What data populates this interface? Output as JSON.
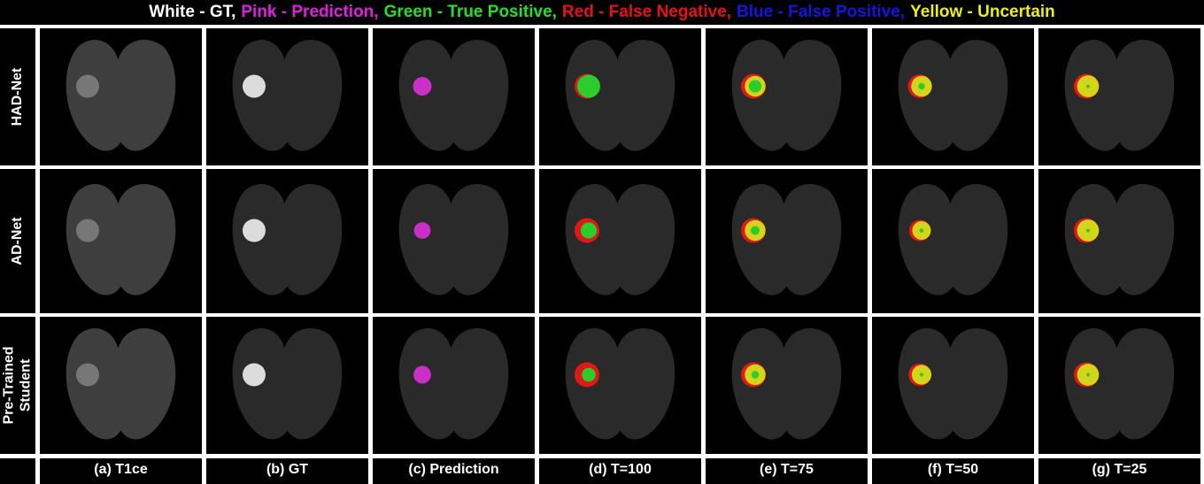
{
  "legend": [
    {
      "text": "White - GT,",
      "color": "#ffffff"
    },
    {
      "text": "Pink - Prediction,",
      "color": "#e21ee2"
    },
    {
      "text": "Green - True Positive,",
      "color": "#22e022"
    },
    {
      "text": "Red - False Negative,",
      "color": "#e81010"
    },
    {
      "text": "Blue - False Positive,",
      "color": "#1414e6"
    },
    {
      "text": "Yellow - Uncertain",
      "color": "#eeee10"
    }
  ],
  "rows": [
    [
      "HAD-Net"
    ],
    [
      "AD-Net"
    ],
    [
      "Pre-Trained",
      "Student"
    ]
  ],
  "columns": [
    "(a) T1ce",
    "(b) GT",
    "(c) Prediction",
    "(d) T=100",
    "(e) T=75",
    "(f) T=50",
    "(g) T=25"
  ]
}
